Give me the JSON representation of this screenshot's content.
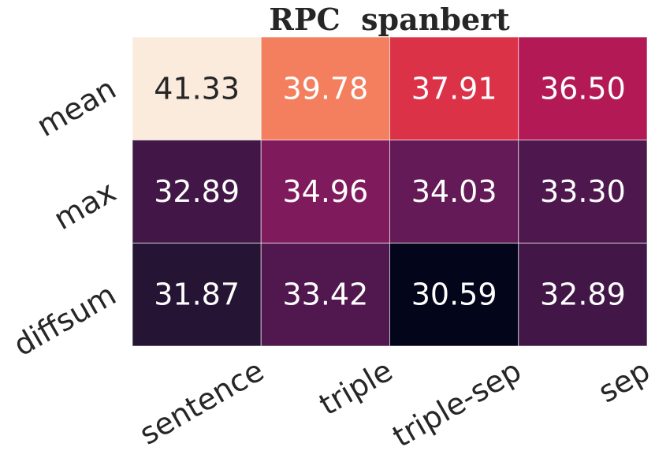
{
  "chart_data": {
    "type": "heatmap",
    "title": "RPC  spanbert",
    "rows": [
      "mean",
      "max",
      "diffsum"
    ],
    "columns": [
      "sentence",
      "triple",
      "triple-sep",
      "sep"
    ],
    "values": [
      [
        41.33,
        39.78,
        37.91,
        36.5
      ],
      [
        32.89,
        34.96,
        34.03,
        33.3
      ],
      [
        31.87,
        33.42,
        30.59,
        32.89
      ]
    ],
    "cell_labels": [
      [
        "41.33",
        "39.78",
        "37.91",
        "36.50"
      ],
      [
        "32.89",
        "34.96",
        "34.03",
        "33.30"
      ],
      [
        "31.87",
        "33.42",
        "30.59",
        "32.89"
      ]
    ],
    "colormap": "rocket",
    "vmin": 30.59,
    "vmax": 41.33,
    "colorbar": false,
    "grid": false,
    "legend": "none"
  }
}
